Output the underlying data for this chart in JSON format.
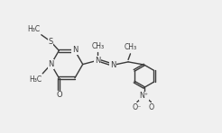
{
  "bg_color": "#f0f0f0",
  "bond_color": "#3a3a3a",
  "bond_width": 1.0,
  "font_size": 6.0,
  "fig_width": 2.46,
  "fig_height": 1.48,
  "dpi": 100,
  "xlim": [
    0,
    10
  ],
  "ylim": [
    0,
    6
  ]
}
